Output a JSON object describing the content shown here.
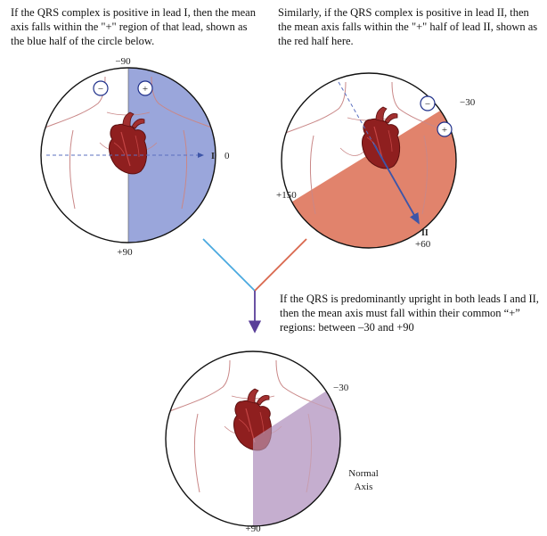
{
  "captions": {
    "lead1": "If the QRS complex is positive in lead I, then the mean axis falls within the \"+\" region of that lead, shown as the blue half of the circle below.",
    "lead2": "Similarly, if the QRS complex is positive in lead II, then the mean axis falls within the \"+\" half of lead II, shown as the red half here.",
    "combined": "If the QRS is predominantly upright in both leads I and II, then the mean axis must fall within their common “+” regions: between –30 and +90"
  },
  "diagram1": {
    "top_label": "−90",
    "bottom_label": "+90",
    "lead_label": "I",
    "lead_angle": "0",
    "minus_sign": "−",
    "plus_sign": "+",
    "shade_color": "#9aa6db"
  },
  "diagram2": {
    "angle_left": "+150",
    "angle_right": "−30",
    "lead_label": "II",
    "lead_angle": "+60",
    "minus_sign": "−",
    "plus_sign": "+",
    "shade_color": "#e1836c"
  },
  "diagram3": {
    "angle_label": "−30",
    "bottom_label": "+90",
    "region_label_line1": "Normal",
    "region_label_line2": "Axis",
    "shade_color": "#c5aecf"
  },
  "connector": {
    "lead1_line_color": "#4aa9df",
    "lead2_line_color": "#d9664c",
    "arrow_color": "#5a3f99"
  }
}
